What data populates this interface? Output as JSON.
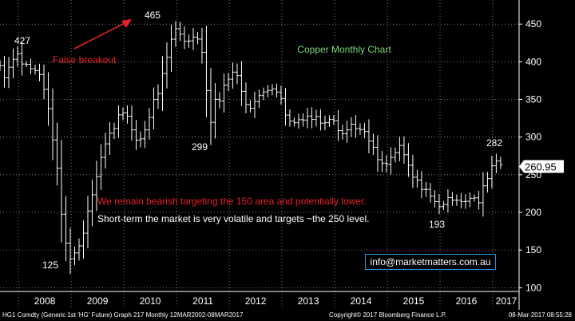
{
  "chart_data": {
    "type": "bar",
    "subtype": "ohlc-monthly",
    "title": "Copper Monthly Chart",
    "ylim": [
      95,
      482
    ],
    "yticks": [
      100,
      150,
      200,
      250,
      300,
      350,
      400,
      450
    ],
    "x_years": [
      "2008",
      "2009",
      "2010",
      "2011",
      "2012",
      "2013",
      "2014",
      "2015",
      "2016",
      "2017"
    ],
    "x_start": 2007.65,
    "x_end": 2017.5,
    "last_value": "260.95",
    "colors": {
      "background": "#000000",
      "bars": "#ffffff",
      "grid": "#ffffff",
      "arrow": "#e8202a",
      "title": "#7cd67c",
      "lastprice_bg": "#ffffff"
    },
    "anchors": [
      [
        2007.65,
        395
      ],
      [
        2007.75,
        380
      ],
      [
        2007.85,
        400
      ],
      [
        2007.95,
        415
      ],
      [
        2008.05,
        400
      ],
      [
        2008.15,
        395
      ],
      [
        2008.25,
        390
      ],
      [
        2008.35,
        385
      ],
      [
        2008.45,
        380
      ],
      [
        2008.55,
        340
      ],
      [
        2008.65,
        300
      ],
      [
        2008.75,
        245
      ],
      [
        2008.85,
        175
      ],
      [
        2008.95,
        140
      ],
      [
        2009.05,
        145
      ],
      [
        2009.15,
        155
      ],
      [
        2009.25,
        180
      ],
      [
        2009.35,
        215
      ],
      [
        2009.45,
        240
      ],
      [
        2009.55,
        270
      ],
      [
        2009.65,
        290
      ],
      [
        2009.75,
        305
      ],
      [
        2009.85,
        320
      ],
      [
        2009.95,
        340
      ],
      [
        2010.05,
        330
      ],
      [
        2010.15,
        305
      ],
      [
        2010.25,
        295
      ],
      [
        2010.35,
        300
      ],
      [
        2010.45,
        320
      ],
      [
        2010.55,
        345
      ],
      [
        2010.65,
        360
      ],
      [
        2010.75,
        385
      ],
      [
        2010.85,
        410
      ],
      [
        2010.95,
        445
      ],
      [
        2011.05,
        440
      ],
      [
        2011.15,
        430
      ],
      [
        2011.25,
        425
      ],
      [
        2011.35,
        440
      ],
      [
        2011.45,
        430
      ],
      [
        2011.55,
        375
      ],
      [
        2011.65,
        320
      ],
      [
        2011.75,
        355
      ],
      [
        2011.85,
        350
      ],
      [
        2011.95,
        380
      ],
      [
        2012.05,
        385
      ],
      [
        2012.15,
        380
      ],
      [
        2012.25,
        360
      ],
      [
        2012.35,
        340
      ],
      [
        2012.45,
        345
      ],
      [
        2012.55,
        350
      ],
      [
        2012.65,
        360
      ],
      [
        2012.75,
        365
      ],
      [
        2012.85,
        370
      ],
      [
        2012.95,
        355
      ],
      [
        2013.05,
        335
      ],
      [
        2013.15,
        320
      ],
      [
        2013.25,
        320
      ],
      [
        2013.35,
        325
      ],
      [
        2013.45,
        330
      ],
      [
        2013.55,
        325
      ],
      [
        2013.65,
        325
      ],
      [
        2013.75,
        320
      ],
      [
        2013.85,
        325
      ],
      [
        2013.95,
        330
      ],
      [
        2014.05,
        315
      ],
      [
        2014.15,
        305
      ],
      [
        2014.25,
        310
      ],
      [
        2014.35,
        320
      ],
      [
        2014.45,
        310
      ],
      [
        2014.55,
        305
      ],
      [
        2014.65,
        295
      ],
      [
        2014.75,
        280
      ],
      [
        2014.85,
        265
      ],
      [
        2014.95,
        260
      ],
      [
        2015.05,
        270
      ],
      [
        2015.15,
        280
      ],
      [
        2015.25,
        285
      ],
      [
        2015.35,
        270
      ],
      [
        2015.45,
        250
      ],
      [
        2015.55,
        240
      ],
      [
        2015.65,
        235
      ],
      [
        2015.75,
        230
      ],
      [
        2015.85,
        215
      ],
      [
        2015.95,
        210
      ],
      [
        2016.05,
        212
      ],
      [
        2016.15,
        215
      ],
      [
        2016.25,
        222
      ],
      [
        2016.35,
        218
      ],
      [
        2016.45,
        216
      ],
      [
        2016.55,
        218
      ],
      [
        2016.65,
        216
      ],
      [
        2016.75,
        214
      ],
      [
        2016.85,
        240
      ],
      [
        2016.95,
        258
      ],
      [
        2017.05,
        270
      ],
      [
        2017.15,
        265
      ],
      [
        2017.17,
        268
      ]
    ]
  },
  "annotations": {
    "peak_label": "465",
    "level_427": "427",
    "false_breakout": "False breakout",
    "level_299": "299",
    "low_125": "125",
    "low_193": "193",
    "level_282": "282",
    "bearish_note": "We remain bearish targeting the 150 area and potentially lower.",
    "shortterm_note": "Short-term the market is very volatile and targets ~the 250 level.",
    "email": "info@marketmatters.com.au"
  },
  "footer": {
    "left": "HG1 Comdty (Generic 1st 'HG' Future) Graph 217  Monthly 12MAR2002-08MAR2017",
    "center": "Copyright© 2017 Bloomberg Finance L.P.",
    "right": "08-Mar-2017 08:55:28"
  }
}
